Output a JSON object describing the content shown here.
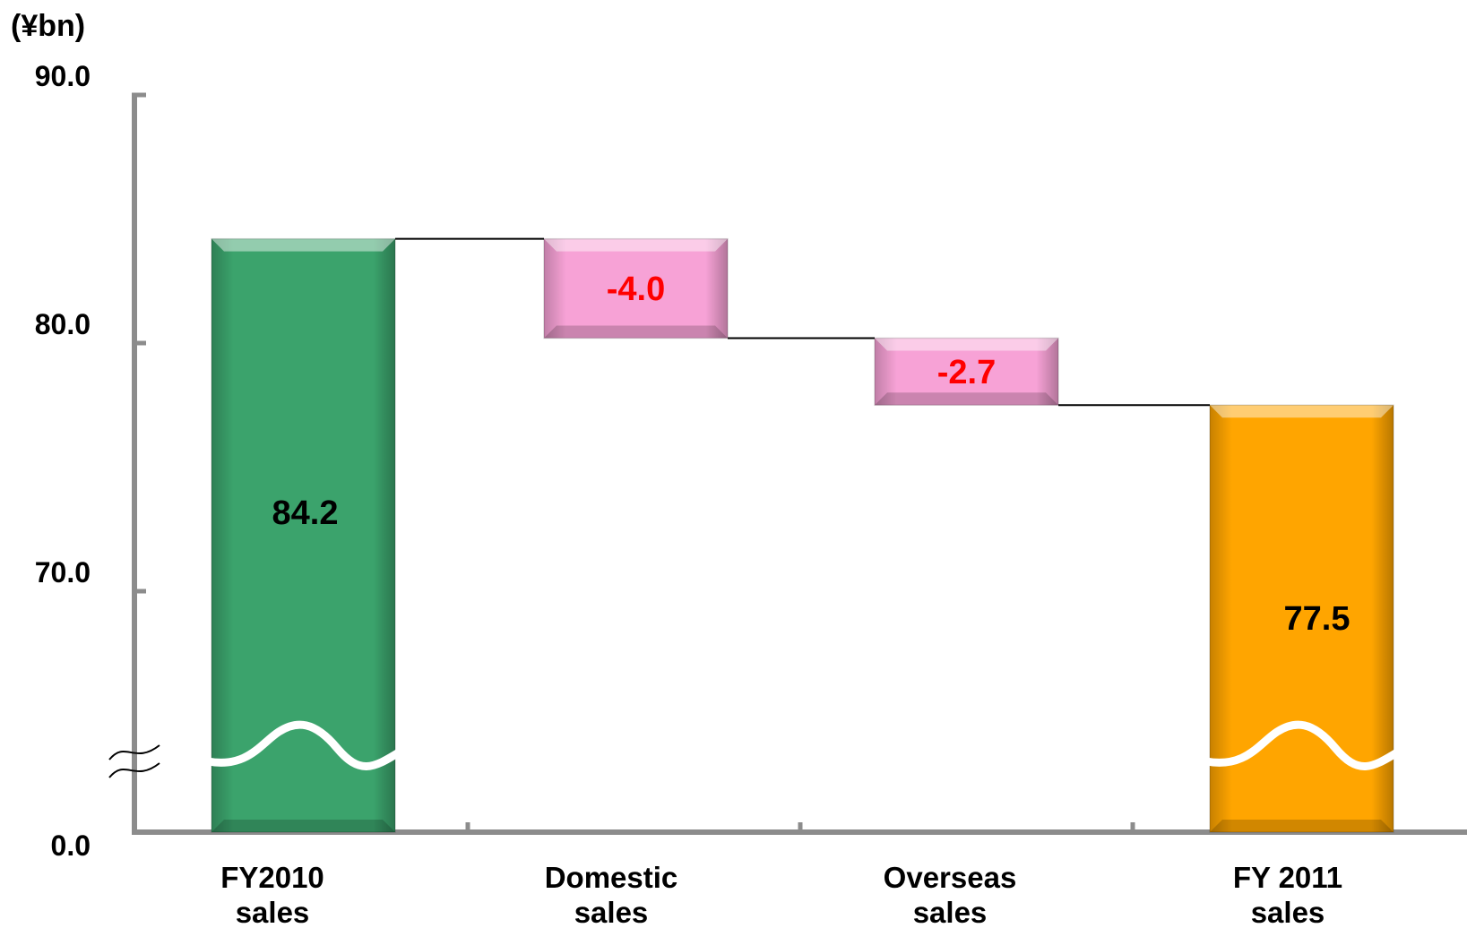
{
  "chart_data": {
    "type": "bar",
    "subtype": "waterfall",
    "unit_label": "(¥bn)",
    "axis_break": true,
    "y_ticks": [
      "90.0",
      "80.0",
      "70.0",
      "0.0"
    ],
    "y_tick_values": [
      90.0,
      80.0,
      70.0,
      0.0
    ],
    "categories": [
      {
        "line1": "FY2010",
        "line2": "sales"
      },
      {
        "line1": "Domestic",
        "line2": "sales"
      },
      {
        "line1": "Overseas",
        "line2": "sales"
      },
      {
        "line1": "FY 2011",
        "line2": "sales"
      }
    ],
    "bars": [
      {
        "kind": "total",
        "start": 0,
        "end": 84.2,
        "label": "84.2",
        "color": "#3BA36C",
        "label_color": "#000000"
      },
      {
        "kind": "delta",
        "start": 84.2,
        "end": 80.2,
        "label": "-4.0",
        "color": "#F7A2D6",
        "label_color": "#FF0000"
      },
      {
        "kind": "delta",
        "start": 80.2,
        "end": 77.5,
        "label": "-2.7",
        "color": "#F7A2D6",
        "label_color": "#FF0000"
      },
      {
        "kind": "total",
        "start": 0,
        "end": 77.5,
        "label": "77.5",
        "color": "#FFA500",
        "label_color": "#000000"
      }
    ],
    "grid": false,
    "legend": "none"
  }
}
